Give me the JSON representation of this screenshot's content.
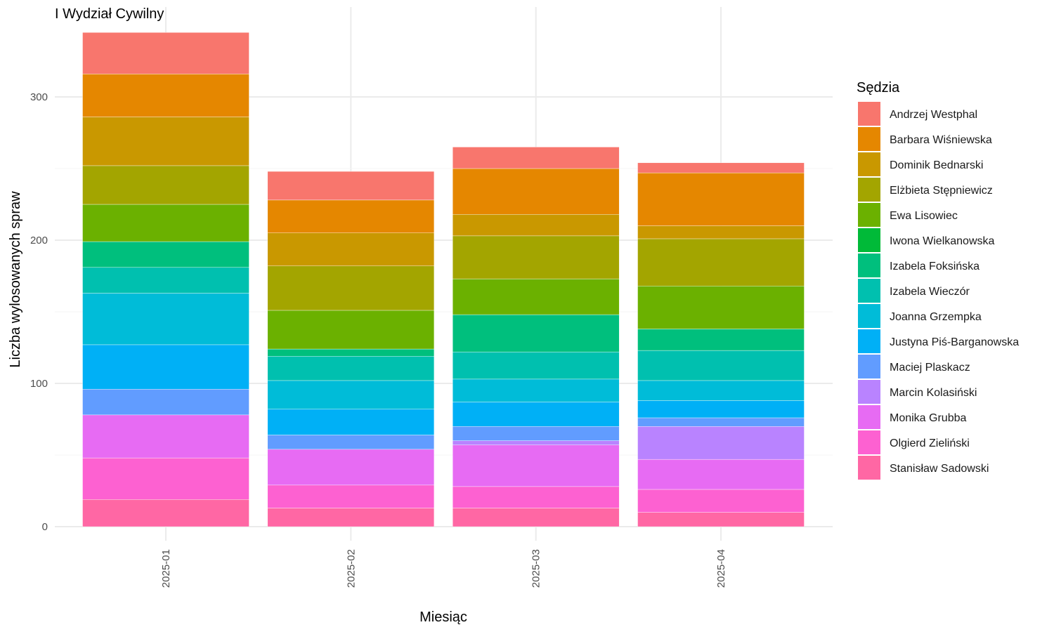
{
  "chart_data": {
    "type": "bar",
    "stacked": true,
    "title": "I Wydział Cywilny",
    "xlabel": "Miesiąc",
    "ylabel": "Liczba wylosowanych spraw",
    "ylim": [
      0,
      345
    ],
    "yticks": [
      0,
      100,
      200,
      300
    ],
    "grid": true,
    "legend_title": "Sędzia",
    "legend_position": "right",
    "categories": [
      "2025-01",
      "2025-02",
      "2025-03",
      "2025-04"
    ],
    "series": [
      {
        "name": "Andrzej Westphal",
        "color": "#F8766D",
        "values": [
          29,
          20,
          15,
          7
        ]
      },
      {
        "name": "Barbara Wiśniewska",
        "color": "#E58700",
        "values": [
          30,
          23,
          32,
          37
        ]
      },
      {
        "name": "Dominik Bednarski",
        "color": "#C99800",
        "values": [
          34,
          23,
          15,
          9
        ]
      },
      {
        "name": "Elżbieta Stępniewicz",
        "color": "#A3A500",
        "values": [
          27,
          31,
          30,
          33
        ]
      },
      {
        "name": "Ewa Lisowiec",
        "color": "#6BB100",
        "values": [
          26,
          27,
          25,
          30
        ]
      },
      {
        "name": "Iwona Wielkanowska",
        "color": "#00BA38",
        "values": [
          0,
          0,
          0,
          0
        ]
      },
      {
        "name": "Izabela Foksińska",
        "color": "#00BF7D",
        "values": [
          18,
          5,
          26,
          15
        ]
      },
      {
        "name": "Izabela Wieczór",
        "color": "#00C0AF",
        "values": [
          18,
          17,
          19,
          21
        ]
      },
      {
        "name": "Joanna Grzempka",
        "color": "#00BCD8",
        "values": [
          36,
          20,
          16,
          14
        ]
      },
      {
        "name": "Justyna Piś-Barganowska",
        "color": "#00B0F6",
        "values": [
          31,
          18,
          17,
          12
        ]
      },
      {
        "name": "Maciej Plaskacz",
        "color": "#619CFF",
        "values": [
          18,
          10,
          10,
          6
        ]
      },
      {
        "name": "Marcin Kolasiński",
        "color": "#B983FF",
        "values": [
          0,
          0,
          3,
          23
        ]
      },
      {
        "name": "Monika Grubba",
        "color": "#E76BF3",
        "values": [
          30,
          25,
          29,
          21
        ]
      },
      {
        "name": "Olgierd Zieliński",
        "color": "#FD61D1",
        "values": [
          29,
          16,
          15,
          16
        ]
      },
      {
        "name": "Stanisław Sadowski",
        "color": "#FF67A4",
        "values": [
          19,
          13,
          13,
          10
        ]
      }
    ]
  }
}
